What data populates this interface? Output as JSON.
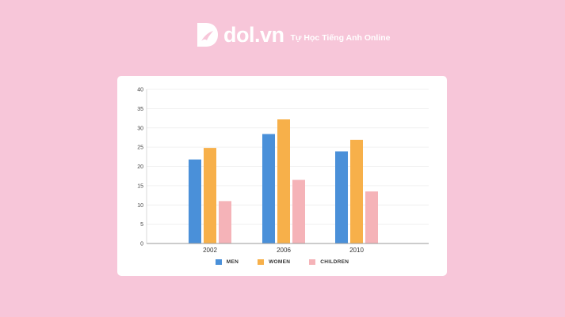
{
  "brand": {
    "name": "dol.vn",
    "tagline": "Tự Học Tiếng Anh Online"
  },
  "colors": {
    "background": "#f7c6d9",
    "card": "#ffffff",
    "men": "#4a90d9",
    "women": "#f7b04a",
    "children": "#f5b3b8"
  },
  "chart_data": {
    "type": "bar",
    "title": "",
    "xlabel": "",
    "ylabel": "",
    "categories": [
      "2002",
      "2006",
      "2010"
    ],
    "series": [
      {
        "name": "MEN",
        "values": [
          21.8,
          28.4,
          23.9
        ]
      },
      {
        "name": "WOMEN",
        "values": [
          24.8,
          32.2,
          26.9
        ]
      },
      {
        "name": "CHILDREN",
        "values": [
          11,
          16.5,
          13.5
        ]
      }
    ],
    "ylim": [
      0,
      40
    ],
    "yticks": [
      0,
      5,
      10,
      15,
      20,
      25,
      30,
      35,
      40
    ],
    "grid": true,
    "legend_position": "bottom"
  }
}
